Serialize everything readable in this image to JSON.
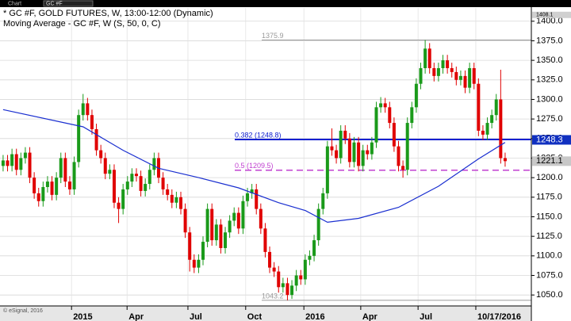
{
  "toolbar": {
    "label": "Chart",
    "symbol": "GC #F"
  },
  "footer": "© eSignal, 2016",
  "chart_data": {
    "type": "candlestick",
    "title": "* GC #F, GOLD FUTURES, W, 13:00-12:00 (Dynamic)",
    "subtitle": "Moving Average - GC #F, W (S, 50, 0, C)",
    "up_color": "#1a9a1a",
    "down_color": "#e00000",
    "open": [
      1215,
      1222,
      1215,
      1230,
      1210,
      1225,
      1232,
      1200,
      1180,
      1170,
      1188,
      1195,
      1178,
      1200,
      1225,
      1195,
      1185,
      1220,
      1280,
      1295,
      1280,
      1262,
      1235,
      1225,
      1205,
      1210,
      1168,
      1160,
      1185,
      1195,
      1205,
      1202,
      1183,
      1192,
      1210,
      1225,
      1200,
      1185,
      1178,
      1168,
      1175,
      1160,
      1130,
      1095,
      1085,
      1095,
      1118,
      1160,
      1120,
      1140,
      1110,
      1130,
      1145,
      1155,
      1135,
      1170,
      1180,
      1185,
      1160,
      1135,
      1105,
      1085,
      1080,
      1060,
      1065,
      1050,
      1062,
      1075,
      1070,
      1095,
      1100,
      1120,
      1160,
      1180,
      1240,
      1235,
      1225,
      1260,
      1250,
      1220,
      1245,
      1215,
      1235,
      1230,
      1245,
      1290,
      1295,
      1290,
      1270,
      1240,
      1215,
      1210,
      1270,
      1290,
      1320,
      1340,
      1365,
      1340,
      1330,
      1340,
      1350,
      1340,
      1335,
      1325,
      1330,
      1315,
      1340,
      1320,
      1260,
      1255,
      1270,
      1280,
      1300,
      1225
    ],
    "high": [
      1229,
      1229,
      1237,
      1237,
      1232,
      1239,
      1239,
      1207,
      1187,
      1195,
      1202,
      1202,
      1207,
      1232,
      1232,
      1202,
      1227,
      1287,
      1307,
      1302,
      1287,
      1269,
      1242,
      1232,
      1217,
      1217,
      1175,
      1192,
      1202,
      1212,
      1212,
      1209,
      1199,
      1217,
      1232,
      1232,
      1207,
      1192,
      1185,
      1182,
      1182,
      1167,
      1137,
      1102,
      1102,
      1125,
      1167,
      1167,
      1147,
      1147,
      1137,
      1152,
      1162,
      1162,
      1177,
      1187,
      1192,
      1192,
      1167,
      1142,
      1112,
      1092,
      1087,
      1072,
      1072,
      1069,
      1082,
      1082,
      1102,
      1107,
      1127,
      1167,
      1187,
      1247,
      1263,
      1242,
      1267,
      1267,
      1257,
      1252,
      1252,
      1242,
      1242,
      1252,
      1297,
      1303,
      1302,
      1297,
      1277,
      1247,
      1222,
      1277,
      1297,
      1327,
      1347,
      1375.9,
      1372,
      1347,
      1347,
      1357,
      1357,
      1347,
      1342,
      1337,
      1337,
      1347,
      1347,
      1327,
      1267,
      1277,
      1287,
      1307,
      1338,
      1232
    ],
    "low": [
      1208,
      1208,
      1208,
      1203,
      1203,
      1218,
      1193,
      1173,
      1163,
      1163,
      1181,
      1171,
      1171,
      1193,
      1188,
      1178,
      1178,
      1213,
      1273,
      1273,
      1255,
      1228,
      1218,
      1198,
      1198,
      1161,
      1142,
      1153,
      1178,
      1188,
      1195,
      1176,
      1176,
      1185,
      1203,
      1193,
      1178,
      1171,
      1161,
      1161,
      1153,
      1123,
      1080,
      1078,
      1078,
      1088,
      1111,
      1113,
      1113,
      1103,
      1103,
      1123,
      1138,
      1128,
      1128,
      1163,
      1173,
      1153,
      1128,
      1098,
      1078,
      1073,
      1053,
      1053,
      1043.2,
      1045,
      1055,
      1063,
      1063,
      1088,
      1093,
      1113,
      1153,
      1173,
      1228,
      1218,
      1218,
      1243,
      1213,
      1213,
      1208,
      1208,
      1223,
      1223,
      1238,
      1283,
      1283,
      1263,
      1233,
      1208,
      1200,
      1203,
      1263,
      1283,
      1313,
      1333,
      1333,
      1323,
      1323,
      1333,
      1333,
      1328,
      1318,
      1318,
      1308,
      1308,
      1313,
      1253,
      1248,
      1248,
      1263,
      1273,
      1218,
      1214
    ],
    "close": [
      1222,
      1215,
      1230,
      1210,
      1225,
      1232,
      1200,
      1180,
      1170,
      1188,
      1195,
      1178,
      1200,
      1225,
      1195,
      1185,
      1220,
      1280,
      1295,
      1280,
      1262,
      1235,
      1225,
      1205,
      1210,
      1168,
      1160,
      1185,
      1195,
      1205,
      1202,
      1183,
      1192,
      1210,
      1225,
      1200,
      1185,
      1178,
      1168,
      1175,
      1160,
      1130,
      1095,
      1085,
      1095,
      1118,
      1160,
      1120,
      1140,
      1110,
      1130,
      1145,
      1155,
      1135,
      1170,
      1180,
      1185,
      1160,
      1135,
      1105,
      1085,
      1080,
      1060,
      1065,
      1050,
      1062,
      1075,
      1070,
      1095,
      1100,
      1120,
      1160,
      1180,
      1240,
      1235,
      1225,
      1260,
      1250,
      1220,
      1245,
      1215,
      1235,
      1230,
      1245,
      1290,
      1295,
      1290,
      1270,
      1240,
      1215,
      1210,
      1270,
      1290,
      1320,
      1340,
      1365,
      1340,
      1330,
      1340,
      1350,
      1340,
      1335,
      1325,
      1330,
      1315,
      1340,
      1320,
      1260,
      1255,
      1270,
      1280,
      1300,
      1225,
      1221.1
    ],
    "moving_average": {
      "color": "#1a2fd0",
      "x": [
        0,
        18,
        27,
        35,
        44,
        53,
        62,
        68,
        73,
        80,
        89,
        98,
        107,
        113
      ],
      "values": [
        1287,
        1265,
        1235,
        1212,
        1200,
        1187,
        1168,
        1158,
        1143,
        1148,
        1162,
        1189,
        1224,
        1245
      ]
    },
    "levels": [
      {
        "value": 1375.9,
        "label": "1375.9",
        "color": "#999999",
        "dash": false,
        "width": 1
      },
      {
        "value": 1248.8,
        "label": "0.382 (1248.8)",
        "color": "#1020d0",
        "dash": false,
        "width": 2
      },
      {
        "value": 1209.5,
        "label": "0.5 (1209.5)",
        "color": "#c040d0",
        "dash": true,
        "width": 1.5
      },
      {
        "value": 1043.2,
        "label": "1043.2",
        "color": "#999999",
        "dash": false,
        "width": 1
      }
    ],
    "price_tags": [
      {
        "value": 1408.1,
        "color": "#d0d0d0",
        "text_color": "#000000"
      },
      {
        "value": 1248.3,
        "color": "#1030c0",
        "text_color": "#ffffff"
      },
      {
        "value": 1221.1,
        "color": "#c8c8c8",
        "text_color": "#000000"
      }
    ],
    "xlim": [
      -0.7,
      118.9
    ],
    "xticks": [
      {
        "value": 15.4,
        "label": "2015"
      },
      {
        "value": 27.9,
        "label": "Apr"
      },
      {
        "value": 41.6,
        "label": "Jul"
      },
      {
        "value": 54.6,
        "label": "Oct"
      },
      {
        "value": 67.7,
        "label": "2016"
      },
      {
        "value": 80.5,
        "label": "Apr"
      },
      {
        "value": 93.4,
        "label": "Jul"
      },
      {
        "value": 106.4,
        "label": "10/17/2016"
      }
    ],
    "ylim": [
      1037,
      1417
    ],
    "yticks": [
      {
        "value": 1050,
        "label": "1050.0"
      },
      {
        "value": 1075,
        "label": "1075.0"
      },
      {
        "value": 1100,
        "label": "1100.0"
      },
      {
        "value": 1125,
        "label": "1125.0"
      },
      {
        "value": 1150,
        "label": "1150.0"
      },
      {
        "value": 1175,
        "label": "1175.0"
      },
      {
        "value": 1200,
        "label": "1200.0"
      },
      {
        "value": 1225,
        "label": "1225.0"
      },
      {
        "value": 1250,
        "label": "1250.0"
      },
      {
        "value": 1275,
        "label": "1275.0"
      },
      {
        "value": 1300,
        "label": "1300.0"
      },
      {
        "value": 1325,
        "label": "1325.0"
      },
      {
        "value": 1350,
        "label": "1350.0"
      },
      {
        "value": 1375,
        "label": "1375.0"
      },
      {
        "value": 1400,
        "label": "1400.0"
      }
    ],
    "grid": true
  }
}
